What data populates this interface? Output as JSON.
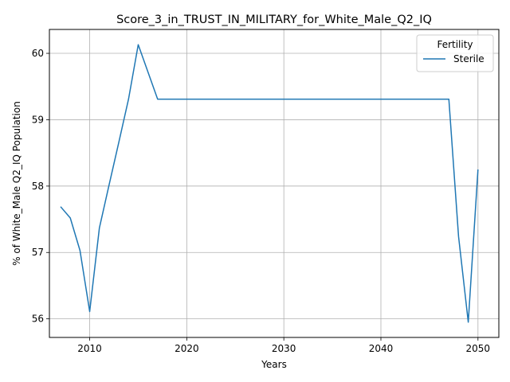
{
  "chart_data": {
    "type": "line",
    "title": "Score_3_in_TRUST_IN_MILITARY_for_White_Male_Q2_IQ",
    "xlabel": "Years",
    "ylabel": "% of White_Male Q2_IQ Population",
    "xlim": [
      2005.85,
      2052.15
    ],
    "ylim": [
      55.72,
      60.36
    ],
    "xticks": [
      2010,
      2020,
      2030,
      2040,
      2050
    ],
    "yticks": [
      56,
      57,
      58,
      59,
      60
    ],
    "grid": true,
    "legend": {
      "title": "Fertility",
      "placement": "top-right"
    },
    "series": [
      {
        "name": "Sterile",
        "color": "#1f77b4",
        "x": [
          2007,
          2008,
          2009,
          2010,
          2011,
          2012,
          2013,
          2014,
          2015,
          2016,
          2017,
          2018,
          2019,
          2020,
          2021,
          2022,
          2023,
          2024,
          2025,
          2026,
          2027,
          2028,
          2029,
          2030,
          2031,
          2032,
          2033,
          2034,
          2035,
          2036,
          2037,
          2038,
          2039,
          2040,
          2041,
          2042,
          2043,
          2044,
          2045,
          2046,
          2047,
          2048,
          2049,
          2050
        ],
        "values": [
          57.69,
          57.52,
          57.03,
          56.11,
          57.37,
          58.02,
          58.66,
          59.31,
          60.13,
          59.72,
          59.31,
          59.31,
          59.31,
          59.31,
          59.31,
          59.31,
          59.31,
          59.31,
          59.31,
          59.31,
          59.31,
          59.31,
          59.31,
          59.31,
          59.31,
          59.31,
          59.31,
          59.31,
          59.31,
          59.31,
          59.31,
          59.31,
          59.31,
          59.31,
          59.31,
          59.31,
          59.31,
          59.31,
          59.31,
          59.31,
          59.31,
          57.24,
          55.95,
          58.25
        ]
      }
    ]
  }
}
